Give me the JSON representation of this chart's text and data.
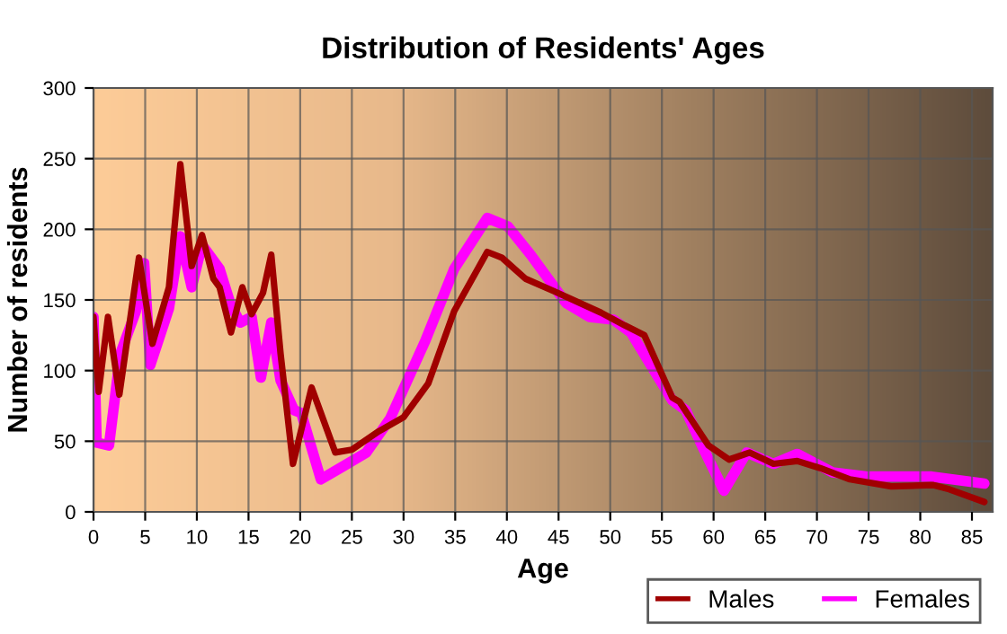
{
  "chart_data": {
    "type": "line",
    "title": "Distribution of Residents' Ages",
    "xlabel": "Age",
    "ylabel": "Number of residents",
    "xlim": [
      0,
      87
    ],
    "xticks": [
      0,
      5,
      10,
      15,
      20,
      25,
      30,
      35,
      40,
      45,
      50,
      55,
      60,
      65,
      70,
      75,
      80,
      85
    ],
    "ylim": [
      0,
      300
    ],
    "yticks": [
      0,
      50,
      100,
      150,
      200,
      250,
      300
    ],
    "grid": true,
    "legend": "bottom right",
    "marker": "none",
    "line_style": "solid",
    "series": [
      {
        "name": "Males",
        "color": "#a00000",
        "x": [
          0,
          0.5,
          1.4,
          2.5,
          4.4,
          5.7,
          7.3,
          8.4,
          9.5,
          10.5,
          11.6,
          12.2,
          13.3,
          14.4,
          15.3,
          16.4,
          17.2,
          18.1,
          19.3,
          21.1,
          23.4,
          25,
          27.6,
          30,
          32.4,
          34.9,
          38.1,
          39.5,
          41.8,
          44.6,
          49.1,
          51.4,
          53.3,
          56,
          56.7,
          59.5,
          61.5,
          63.5,
          65.8,
          68.1,
          70.3,
          73.2,
          77.2,
          81.2,
          82.8,
          86.2
        ],
        "values": [
          138,
          85,
          138,
          83,
          180,
          119,
          159,
          246,
          174,
          196,
          165,
          159,
          127,
          159,
          140,
          155,
          182,
          112,
          34,
          88,
          42,
          44,
          57,
          67,
          91,
          142,
          184,
          180,
          165,
          156,
          141,
          132,
          125,
          81,
          78,
          47,
          37,
          42,
          34,
          36,
          31,
          23,
          18,
          19,
          16,
          7
        ]
      },
      {
        "name": "Females",
        "color": "#ff00ff",
        "x": [
          0,
          0.3,
          1.5,
          2.6,
          4.1,
          4.9,
          5.5,
          7.3,
          8.4,
          9.5,
          10.5,
          12.2,
          13.3,
          14.2,
          15.3,
          16.2,
          17.2,
          18.1,
          19.4,
          20.1,
          22,
          24.1,
          26.4,
          28.7,
          32.1,
          34.9,
          38.1,
          40.1,
          42.3,
          45.7,
          48,
          50.3,
          52,
          56,
          57.3,
          59,
          61,
          63.2,
          65.8,
          68.1,
          71.5,
          74.9,
          81.1,
          86.2
        ],
        "values": [
          138,
          49,
          47,
          112,
          142,
          176,
          104,
          144,
          195,
          159,
          189,
          172,
          146,
          134,
          138,
          95,
          134,
          93,
          72,
          70,
          23,
          32,
          42,
          66,
          121,
          172,
          208,
          202,
          182,
          148,
          138,
          136,
          127,
          79,
          72,
          45,
          15,
          42,
          34,
          41,
          28,
          25,
          25,
          20
        ]
      }
    ]
  }
}
